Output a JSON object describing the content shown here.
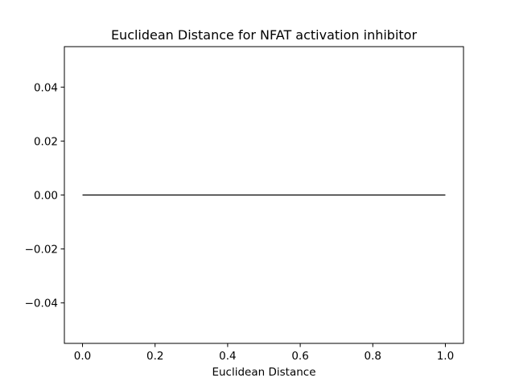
{
  "chart_data": {
    "type": "line",
    "title": "Euclidean Distance for NFAT activation inhibitor",
    "xlabel": "Euclidean Distance",
    "ylabel": "",
    "xlim": [
      -0.05,
      1.05
    ],
    "ylim": [
      -0.055,
      0.055
    ],
    "x_ticks": [
      0.0,
      0.2,
      0.4,
      0.6,
      0.8,
      1.0
    ],
    "x_tick_labels": [
      "0.0",
      "0.2",
      "0.4",
      "0.6",
      "0.8",
      "1.0"
    ],
    "y_ticks": [
      0.04,
      0.02,
      0.0,
      -0.02,
      -0.04
    ],
    "y_tick_labels": [
      "0.04",
      "0.02",
      "0.00",
      "−0.02",
      "−0.04"
    ],
    "grid": false,
    "legend": "none",
    "series": [
      {
        "color": "#000000",
        "x": [
          0.0,
          1.0
        ],
        "y": [
          0.0,
          0.0
        ]
      }
    ]
  }
}
